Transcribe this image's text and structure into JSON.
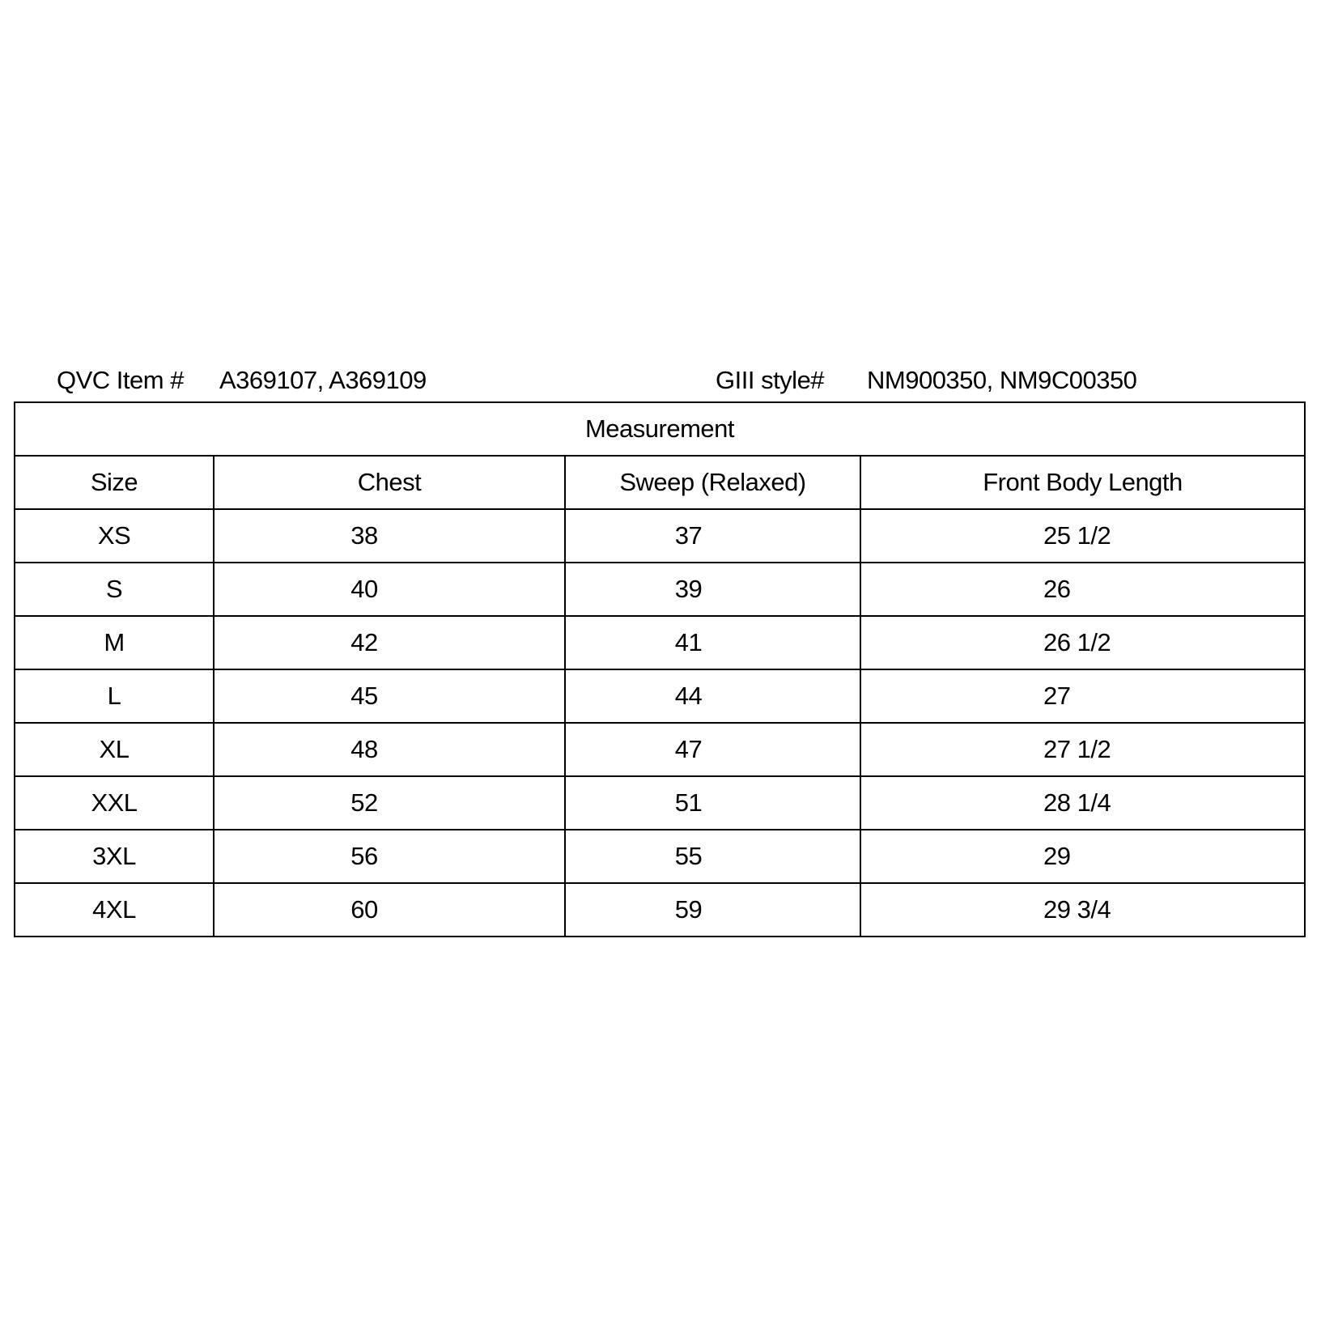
{
  "header": {
    "qvc_label": "QVC Item #",
    "qvc_value": "A369107, A369109",
    "style_label": "GIII style#",
    "style_value": "NM900350, NM9C00350"
  },
  "table": {
    "title": "Measurement",
    "columns": [
      "Size",
      "Chest",
      "Sweep (Relaxed)",
      "Front Body Length"
    ],
    "rows": [
      [
        "XS",
        "38",
        "37",
        "25 1/2"
      ],
      [
        "S",
        "40",
        "39",
        "26"
      ],
      [
        "M",
        "42",
        "41",
        "26 1/2"
      ],
      [
        "L",
        "45",
        "44",
        "27"
      ],
      [
        "XL",
        "48",
        "47",
        "27 1/2"
      ],
      [
        "XXL",
        "52",
        "51",
        "28 1/4"
      ],
      [
        "3XL",
        "56",
        "55",
        "29"
      ],
      [
        "4XL",
        "60",
        "59",
        "29 3/4"
      ]
    ]
  }
}
